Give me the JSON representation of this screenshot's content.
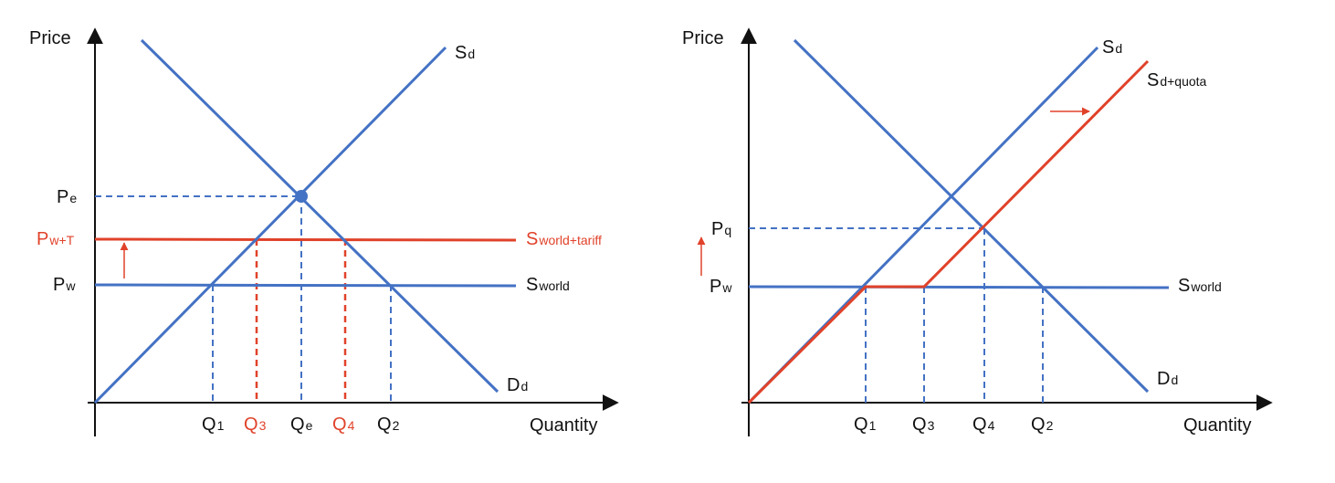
{
  "colors": {
    "blue": "#4472c4",
    "red": "#e0422a",
    "axis": "#111111"
  },
  "left": {
    "axis_y": "Price",
    "axis_x": "Quantity",
    "supply": {
      "main": "S",
      "sub": "d"
    },
    "demand": {
      "main": "D",
      "sub": "d"
    },
    "world": {
      "main": "S",
      "sub": "world"
    },
    "world_tariff": {
      "main": "S",
      "sub": "world+tariff"
    },
    "price_e": {
      "main": "P",
      "sub": "e"
    },
    "price_w": {
      "main": "P",
      "sub": "w"
    },
    "price_wt": {
      "main": "P",
      "sub": "w+T"
    },
    "q1": {
      "main": "Q",
      "sub": "1"
    },
    "q2": {
      "main": "Q",
      "sub": "2"
    },
    "q3": {
      "main": "Q",
      "sub": "3"
    },
    "q4": {
      "main": "Q",
      "sub": "4"
    },
    "qe": {
      "main": "Q",
      "sub": "e"
    }
  },
  "right": {
    "axis_y": "Price",
    "axis_x": "Quantity",
    "supply": {
      "main": "S",
      "sub": "d"
    },
    "supply_quota": {
      "main": "S",
      "sub": "d+quota"
    },
    "demand": {
      "main": "D",
      "sub": "d"
    },
    "world": {
      "main": "S",
      "sub": "world"
    },
    "price_q": {
      "main": "P",
      "sub": "q"
    },
    "price_w": {
      "main": "P",
      "sub": "w"
    },
    "q1": {
      "main": "Q",
      "sub": "1"
    },
    "q2": {
      "main": "Q",
      "sub": "2"
    },
    "q3": {
      "main": "Q",
      "sub": "3"
    },
    "q4": {
      "main": "Q",
      "sub": "4"
    }
  }
}
